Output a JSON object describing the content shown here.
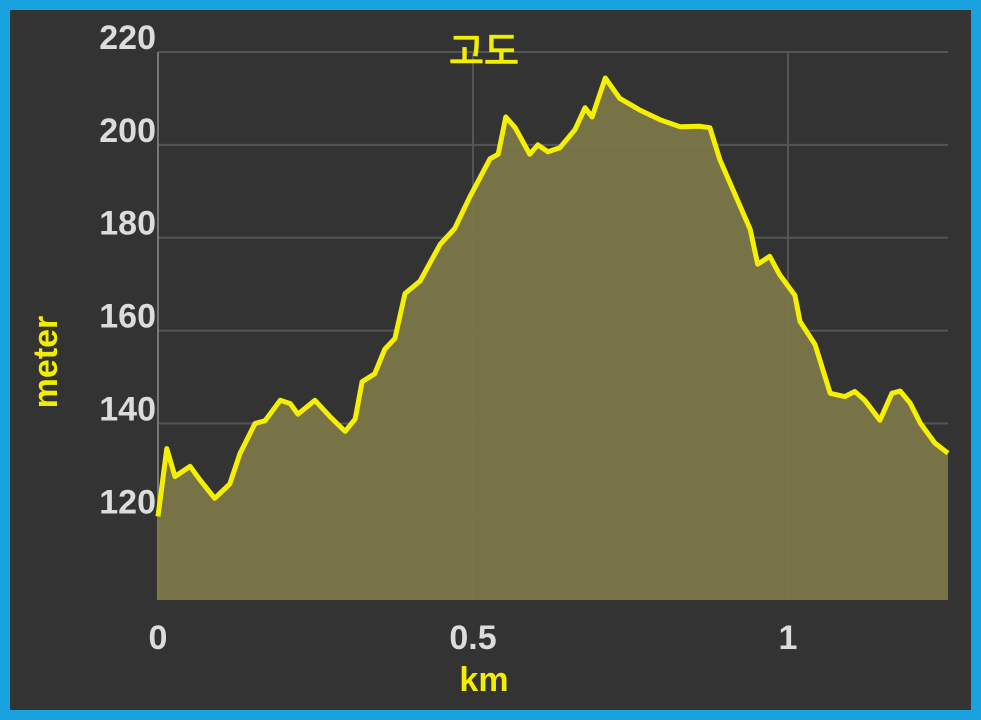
{
  "chart_data": {
    "type": "area",
    "title": "고도",
    "x_label": "km",
    "y_label": "meter",
    "color": "#f5f000",
    "fill_color": "#7b7748",
    "x": [
      0,
      0.014,
      0.027,
      0.051,
      0.067,
      0.09,
      0.114,
      0.13,
      0.154,
      0.17,
      0.194,
      0.21,
      0.222,
      0.249,
      0.273,
      0.297,
      0.313,
      0.324,
      0.344,
      0.36,
      0.376,
      0.392,
      0.416,
      0.448,
      0.471,
      0.495,
      0.527,
      0.54,
      0.552,
      0.567,
      0.59,
      0.603,
      0.619,
      0.638,
      0.662,
      0.678,
      0.689,
      0.71,
      0.733,
      0.765,
      0.797,
      0.829,
      0.86,
      0.876,
      0.892,
      0.916,
      0.94,
      0.952,
      0.971,
      0.987,
      1.011,
      1.019,
      1.043,
      1.067,
      1.09,
      1.106,
      1.122,
      1.146,
      1.165,
      1.178,
      1.194,
      1.21,
      1.233,
      1.254
    ],
    "values": [
      120,
      134.6,
      128.6,
      130.8,
      127.8,
      123.9,
      127,
      133.5,
      140,
      140.6,
      145,
      144.3,
      142,
      145,
      141.5,
      138.3,
      141,
      149,
      150.7,
      156,
      158.3,
      168,
      170.7,
      178.6,
      182,
      188.8,
      197,
      198,
      206,
      203.7,
      198,
      200,
      198.5,
      199.4,
      203.3,
      208,
      206,
      214.4,
      210,
      207.5,
      205.4,
      203.9,
      204,
      203.7,
      196.8,
      189.3,
      181.8,
      174.3,
      176,
      172,
      167.6,
      162,
      157,
      146.5,
      145.8,
      146.9,
      145,
      140.7,
      146.5,
      147,
      144.4,
      140.1,
      135.8,
      133.6
    ],
    "xlim": [
      0,
      1.254
    ],
    "ylim": [
      102,
      220
    ],
    "xticks": [
      0,
      0.5,
      1
    ],
    "yticks": [
      120,
      140,
      160,
      180,
      200,
      220
    ],
    "grid": true
  }
}
